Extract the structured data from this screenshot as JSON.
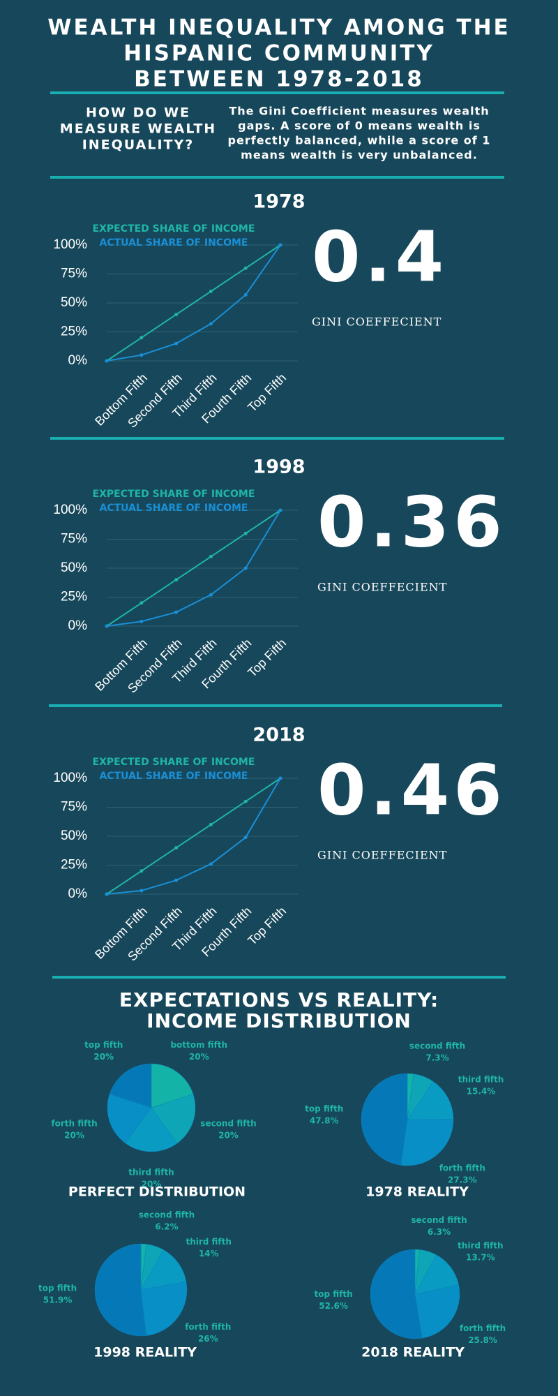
{
  "header": {
    "title_lines": [
      "WEALTH INEQUALITY AMONG THE",
      "HISPANIC COMMUNITY",
      "BETWEEN 1978-2018"
    ]
  },
  "intro": {
    "question_lines": [
      "HOW DO WE",
      "MEASURE WEALTH",
      "INEQUALITY?"
    ],
    "text_lines": [
      "The Gini Coefficient measures wealth",
      "gaps.  A score of 0 means wealth is",
      "perfectly balanced, while a score of 1",
      "means wealth is very unbalanced."
    ]
  },
  "pies_title_lines": [
    "EXPECTATIONS VS REALITY:",
    "INCOME DISTRIBUTION"
  ],
  "chart_data": [
    {
      "type": "line",
      "title": "1978",
      "gini": 0.4,
      "gini_label": "GINI COEFFECIENT",
      "categories": [
        null,
        "Bottom Fifth",
        "Second Fifth",
        "Third Fifth",
        "Fourth Fifth",
        "Top Fifth"
      ],
      "series": [
        {
          "name": "EXPECTED SHARE OF INCOME",
          "color": "#1fb5a8",
          "values": [
            0,
            20,
            40,
            60,
            80,
            100
          ]
        },
        {
          "name": "ACTUAL SHARE OF INCOME",
          "color": "#1a8fd6",
          "values": [
            0,
            5,
            15,
            32,
            57,
            100
          ]
        }
      ],
      "ylim": [
        0,
        100
      ],
      "yticks": [
        {
          "value": 0,
          "label": "0%"
        },
        {
          "value": 25,
          "label": "25%"
        },
        {
          "value": 50,
          "label": "50%"
        },
        {
          "value": 75,
          "label": "75%"
        },
        {
          "value": 100,
          "label": "100%"
        }
      ],
      "grid": true
    },
    {
      "type": "line",
      "title": "1998",
      "gini": 0.36,
      "gini_label": "GINI COEFFECIENT",
      "categories": [
        null,
        "Bottom Fifth",
        "Second Fifth",
        "Third Fifth",
        "Fourth Fifth",
        "Top Fifth"
      ],
      "series": [
        {
          "name": "EXPECTED SHARE OF INCOME",
          "color": "#1fb5a8",
          "values": [
            0,
            20,
            40,
            60,
            80,
            100
          ]
        },
        {
          "name": "ACTUAL SHARE OF INCOME",
          "color": "#1a8fd6",
          "values": [
            0,
            4,
            12,
            27,
            50,
            100
          ]
        }
      ],
      "ylim": [
        0,
        100
      ],
      "yticks": [
        {
          "value": 0,
          "label": "0%"
        },
        {
          "value": 25,
          "label": "25%"
        },
        {
          "value": 50,
          "label": "50%"
        },
        {
          "value": 75,
          "label": "75%"
        },
        {
          "value": 100,
          "label": "100%"
        }
      ],
      "grid": true
    },
    {
      "type": "line",
      "title": "2018",
      "gini": 0.46,
      "gini_label": "GINI COEFFECIENT",
      "categories": [
        null,
        "Bottom Fifth",
        "Second Fifth",
        "Third Fifth",
        "Fourth Fifth",
        "Top Fifth"
      ],
      "series": [
        {
          "name": "EXPECTED SHARE OF INCOME",
          "color": "#1fb5a8",
          "values": [
            0,
            20,
            40,
            60,
            80,
            100
          ]
        },
        {
          "name": "ACTUAL SHARE OF INCOME",
          "color": "#1a8fd6",
          "values": [
            0,
            3,
            12,
            26,
            49,
            100
          ]
        }
      ],
      "ylim": [
        0,
        100
      ],
      "yticks": [
        {
          "value": 0,
          "label": "0%"
        },
        {
          "value": 25,
          "label": "25%"
        },
        {
          "value": 50,
          "label": "50%"
        },
        {
          "value": 75,
          "label": "75%"
        },
        {
          "value": 100,
          "label": "100%"
        }
      ],
      "grid": true
    },
    {
      "type": "pie",
      "title": "PERFECT DISTRIBUTION",
      "categories": [
        "bottom fifth",
        "second fifth",
        "third fifth",
        "forth fifth",
        "top fifth"
      ],
      "values": [
        20,
        20,
        20,
        20,
        20
      ],
      "value_labels": [
        "20%",
        "20%",
        "20%",
        "20%",
        "20%"
      ],
      "colors": [
        "#14b3a8",
        "#0ea6b6",
        "#0a9bc3",
        "#0890c6",
        "#0579b7"
      ]
    },
    {
      "type": "pie",
      "title": "1978 REALITY",
      "categories": [
        null,
        "second fifth",
        "third fifth",
        "forth fifth",
        "top fifth"
      ],
      "values": [
        2.2,
        7.3,
        15.4,
        27.3,
        47.8
      ],
      "value_labels": [
        null,
        "7.3%",
        "15.4%",
        "27.3%",
        "47.8%"
      ],
      "colors": [
        "#14b3a8",
        "#0ea6b6",
        "#0a9bc3",
        "#0890c6",
        "#0579b7"
      ]
    },
    {
      "type": "pie",
      "title": "1998 REALITY",
      "categories": [
        null,
        "second fifth",
        "third fifth",
        "forth fifth",
        "top fifth"
      ],
      "values": [
        1.9,
        6.2,
        14,
        26,
        51.9
      ],
      "value_labels": [
        null,
        "6.2%",
        "14%",
        "26%",
        "51.9%"
      ],
      "colors": [
        "#14b3a8",
        "#0ea6b6",
        "#0a9bc3",
        "#0890c6",
        "#0579b7"
      ]
    },
    {
      "type": "pie",
      "title": "2018 REALITY",
      "categories": [
        null,
        "second fifth",
        "third fifth",
        "forth fifth",
        "top fifth"
      ],
      "values": [
        1.6,
        6.3,
        13.7,
        25.8,
        52.6
      ],
      "value_labels": [
        null,
        "6.3%",
        "13.7%",
        "25.8%",
        "52.6%"
      ],
      "colors": [
        "#14b3a8",
        "#0ea6b6",
        "#0a9bc3",
        "#0890c6",
        "#0579b7"
      ]
    }
  ]
}
